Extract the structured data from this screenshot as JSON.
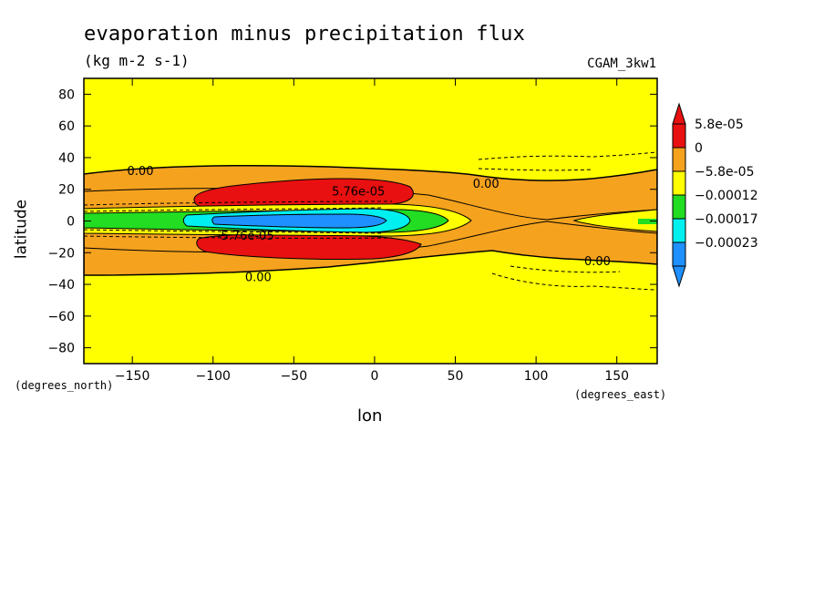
{
  "chart_data": {
    "type": "contour",
    "title": "evaporation minus precipitation flux",
    "units": "(kg m-2 s-1)",
    "dataset": "CGAM_3kw1",
    "xlabel": "lon",
    "ylabel": "latitude",
    "x_axis_note": "(degrees_east)",
    "y_axis_note": "(degrees_north)",
    "xlim": [
      -180,
      175
    ],
    "ylim": [
      -90,
      90
    ],
    "x_ticks": [
      -150,
      -100,
      -50,
      0,
      50,
      100,
      150
    ],
    "x_tick_labels": [
      "−150",
      "−100",
      "−50",
      "0",
      "50",
      "100",
      "150"
    ],
    "y_ticks": [
      80,
      60,
      40,
      20,
      0,
      -20,
      -40,
      -60,
      -80
    ],
    "y_tick_labels": [
      "80",
      "60",
      "40",
      "20",
      "0",
      "−20",
      "−40",
      "−60",
      "−80"
    ],
    "colorbar": {
      "labels": [
        "5.8e-05",
        "0",
        "−5.8e-05",
        "−0.00012",
        "−0.00017",
        "−0.00023"
      ],
      "colors": [
        "#e81010",
        "#f5a21e",
        "#ffff00",
        "#22dd22",
        "#00f0f0",
        "#1e90ff"
      ]
    },
    "contour_labels": [
      {
        "text": "0.00",
        "x": -145,
        "y": 32
      },
      {
        "text": "0.00",
        "x": 69,
        "y": 24
      },
      {
        "text": "0.00",
        "x": 138,
        "y": -25
      },
      {
        "text": "0.00",
        "x": -72,
        "y": -35
      },
      {
        "text": "5.76e-05",
        "x": -10,
        "y": 19
      },
      {
        "text": "-5.76e-05",
        "x": -80,
        "y": -9
      }
    ],
    "regions": [
      {
        "class": "orange",
        "level": "0 to 5.8e-05",
        "desc": "tropical band"
      },
      {
        "class": "red",
        "level": "> 5.8e-05",
        "desc": "subtropical maxima north and south"
      },
      {
        "class": "green",
        "level": "< -5.8e-05"
      },
      {
        "class": "cyan",
        "level": "< -0.00012"
      },
      {
        "class": "blue",
        "level": "< -0.00017"
      }
    ]
  }
}
